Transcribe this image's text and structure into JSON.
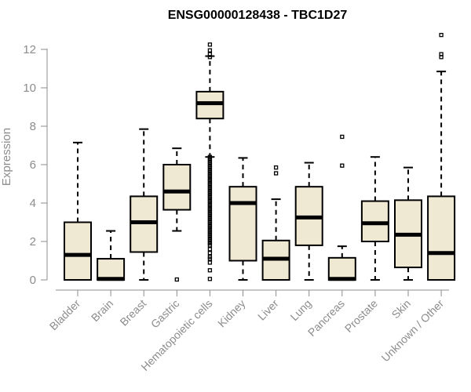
{
  "chart_data": {
    "type": "boxplot",
    "title": "ENSG00000128438 - TBC1D27",
    "ylabel": "Expression",
    "xlabel": "",
    "ylim": [
      0,
      12.7
    ],
    "yticks": [
      0,
      2,
      4,
      6,
      8,
      10,
      12
    ],
    "colors": {
      "box_fill": "#efe8d2",
      "stroke": "#000000",
      "axis": "#8c8c8c"
    },
    "categories": [
      "Bladder",
      "Brain",
      "Breast",
      "Gastric",
      "Hematopoietic cells",
      "Kidney",
      "Liver",
      "Lung",
      "Pancreas",
      "Prostate",
      "Skin",
      "Unknown / Other"
    ],
    "series": [
      {
        "name": "Bladder",
        "whisker_low": 0,
        "q1": 0,
        "median": 1.3,
        "q3": 3.0,
        "whisker_high": 7.15,
        "outliers": []
      },
      {
        "name": "Brain",
        "whisker_low": 0,
        "q1": 0,
        "median": 0.05,
        "q3": 1.1,
        "whisker_high": 2.55,
        "outliers": []
      },
      {
        "name": "Breast",
        "whisker_low": 0,
        "q1": 1.45,
        "median": 3.0,
        "q3": 4.35,
        "whisker_high": 7.85,
        "outliers": []
      },
      {
        "name": "Gastric",
        "whisker_low": 2.55,
        "q1": 3.65,
        "median": 4.6,
        "q3": 6.0,
        "whisker_high": 6.85,
        "outliers": [
          0.02
        ]
      },
      {
        "name": "Hematopoietic cells",
        "whisker_low": 6.4,
        "q1": 8.4,
        "median": 9.2,
        "q3": 9.8,
        "whisker_high": 11.65,
        "outliers": [
          12.25,
          11.95,
          11.75,
          11.6,
          6.4,
          6.3,
          6.2,
          6.1,
          6.0,
          5.9,
          5.8,
          5.7,
          5.6,
          5.5,
          5.4,
          5.3,
          5.2,
          5.1,
          5.0,
          4.9,
          4.8,
          4.7,
          4.6,
          4.5,
          4.4,
          4.3,
          4.2,
          4.1,
          4.0,
          3.9,
          3.8,
          3.7,
          3.6,
          3.5,
          3.4,
          3.3,
          3.2,
          3.1,
          3.0,
          2.9,
          2.8,
          2.7,
          2.6,
          2.5,
          2.4,
          2.3,
          2.2,
          2.1,
          2.0,
          1.9,
          1.8,
          1.6,
          1.4,
          1.2,
          1.1,
          0.9,
          0.5,
          0.05
        ]
      },
      {
        "name": "Kidney",
        "whisker_low": 0,
        "q1": 1.0,
        "median": 4.0,
        "q3": 4.85,
        "whisker_high": 6.35,
        "outliers": []
      },
      {
        "name": "Liver",
        "whisker_low": 0,
        "q1": 0,
        "median": 1.1,
        "q3": 2.05,
        "whisker_high": 4.2,
        "outliers": [
          5.55,
          5.85
        ]
      },
      {
        "name": "Lung",
        "whisker_low": 0,
        "q1": 1.8,
        "median": 3.25,
        "q3": 4.85,
        "whisker_high": 6.1,
        "outliers": []
      },
      {
        "name": "Pancreas",
        "whisker_low": 0,
        "q1": 0,
        "median": 0.05,
        "q3": 1.15,
        "whisker_high": 1.75,
        "outliers": [
          5.95,
          7.45
        ]
      },
      {
        "name": "Prostate",
        "whisker_low": 0,
        "q1": 2.0,
        "median": 2.95,
        "q3": 4.1,
        "whisker_high": 6.4,
        "outliers": []
      },
      {
        "name": "Skin",
        "whisker_low": 0,
        "q1": 0.65,
        "median": 2.35,
        "q3": 4.15,
        "whisker_high": 5.85,
        "outliers": []
      },
      {
        "name": "Unknown / Other",
        "whisker_low": 0,
        "q1": 0,
        "median": 1.4,
        "q3": 4.35,
        "whisker_high": 10.85,
        "outliers": [
          11.6,
          11.75,
          12.75
        ]
      }
    ]
  }
}
